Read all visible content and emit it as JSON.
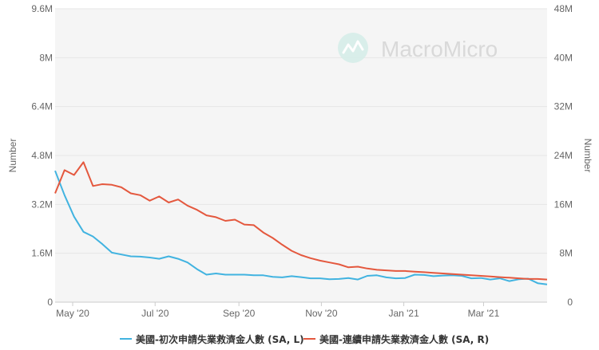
{
  "watermark": {
    "text": "MacroMicro"
  },
  "chart_data": {
    "type": "line",
    "title": "",
    "xlabel": "",
    "ylabel_left": "Number",
    "ylabel_right": "Number",
    "ylim_left": [
      0,
      9600000
    ],
    "ylim_right": [
      0,
      48000000
    ],
    "yticks_left": [
      "0",
      "1.6M",
      "3.2M",
      "4.8M",
      "6.4M",
      "8M",
      "9.6M"
    ],
    "yticks_right": [
      "0",
      "8M",
      "16M",
      "24M",
      "32M",
      "40M",
      "48M"
    ],
    "xticks": [
      "May '20",
      "Jul '20",
      "Sep '20",
      "Nov '20",
      "Jan '21",
      "Mar '21"
    ],
    "x": [
      "2020-04-18",
      "2020-04-25",
      "2020-05-02",
      "2020-05-09",
      "2020-05-16",
      "2020-05-23",
      "2020-05-30",
      "2020-06-06",
      "2020-06-13",
      "2020-06-20",
      "2020-06-27",
      "2020-07-04",
      "2020-07-11",
      "2020-07-18",
      "2020-07-25",
      "2020-08-01",
      "2020-08-08",
      "2020-08-15",
      "2020-08-22",
      "2020-08-29",
      "2020-09-05",
      "2020-09-12",
      "2020-09-19",
      "2020-09-26",
      "2020-10-03",
      "2020-10-10",
      "2020-10-17",
      "2020-10-24",
      "2020-10-31",
      "2020-11-07",
      "2020-11-14",
      "2020-11-21",
      "2020-11-28",
      "2020-12-05",
      "2020-12-12",
      "2020-12-19",
      "2020-12-26",
      "2021-01-02",
      "2021-01-09",
      "2021-01-16",
      "2021-01-23",
      "2021-01-30",
      "2021-02-06",
      "2021-02-13",
      "2021-02-20",
      "2021-02-27",
      "2021-03-06",
      "2021-03-13",
      "2021-03-20",
      "2021-03-27",
      "2021-04-03",
      "2021-04-10",
      "2021-04-17"
    ],
    "grid": true,
    "legend_position": "bottom",
    "series": [
      {
        "name": "美國-初次申請失業救濟金人數 (SA, L)",
        "axis": "left",
        "color": "#41b3e0",
        "values": [
          4300000,
          3500000,
          2800000,
          2300000,
          2150000,
          1900000,
          1620000,
          1560000,
          1500000,
          1490000,
          1460000,
          1420000,
          1500000,
          1420000,
          1300000,
          1080000,
          900000,
          940000,
          900000,
          900000,
          900000,
          880000,
          880000,
          830000,
          810000,
          850000,
          820000,
          780000,
          780000,
          750000,
          760000,
          790000,
          740000,
          860000,
          880000,
          810000,
          780000,
          790000,
          900000,
          890000,
          850000,
          870000,
          880000,
          860000,
          780000,
          790000,
          740000,
          780000,
          690000,
          750000,
          770000,
          620000,
          580000
        ]
      },
      {
        "name": "美國-連續申請失業救濟金人數 (SA, R)",
        "axis": "right",
        "color": "#e4583e",
        "values": [
          17800000,
          21600000,
          20800000,
          22900000,
          19000000,
          19300000,
          19200000,
          18800000,
          17800000,
          17500000,
          16600000,
          17300000,
          16300000,
          16800000,
          15800000,
          15100000,
          14200000,
          13900000,
          13300000,
          13500000,
          12700000,
          12600000,
          11400000,
          10500000,
          9400000,
          8400000,
          7700000,
          7200000,
          6800000,
          6500000,
          6200000,
          5700000,
          5800000,
          5500000,
          5300000,
          5200000,
          5100000,
          5100000,
          5000000,
          4900000,
          4800000,
          4700000,
          4600000,
          4500000,
          4400000,
          4300000,
          4200000,
          4100000,
          4000000,
          3900000,
          3800000,
          3800000,
          3700000
        ]
      }
    ]
  }
}
